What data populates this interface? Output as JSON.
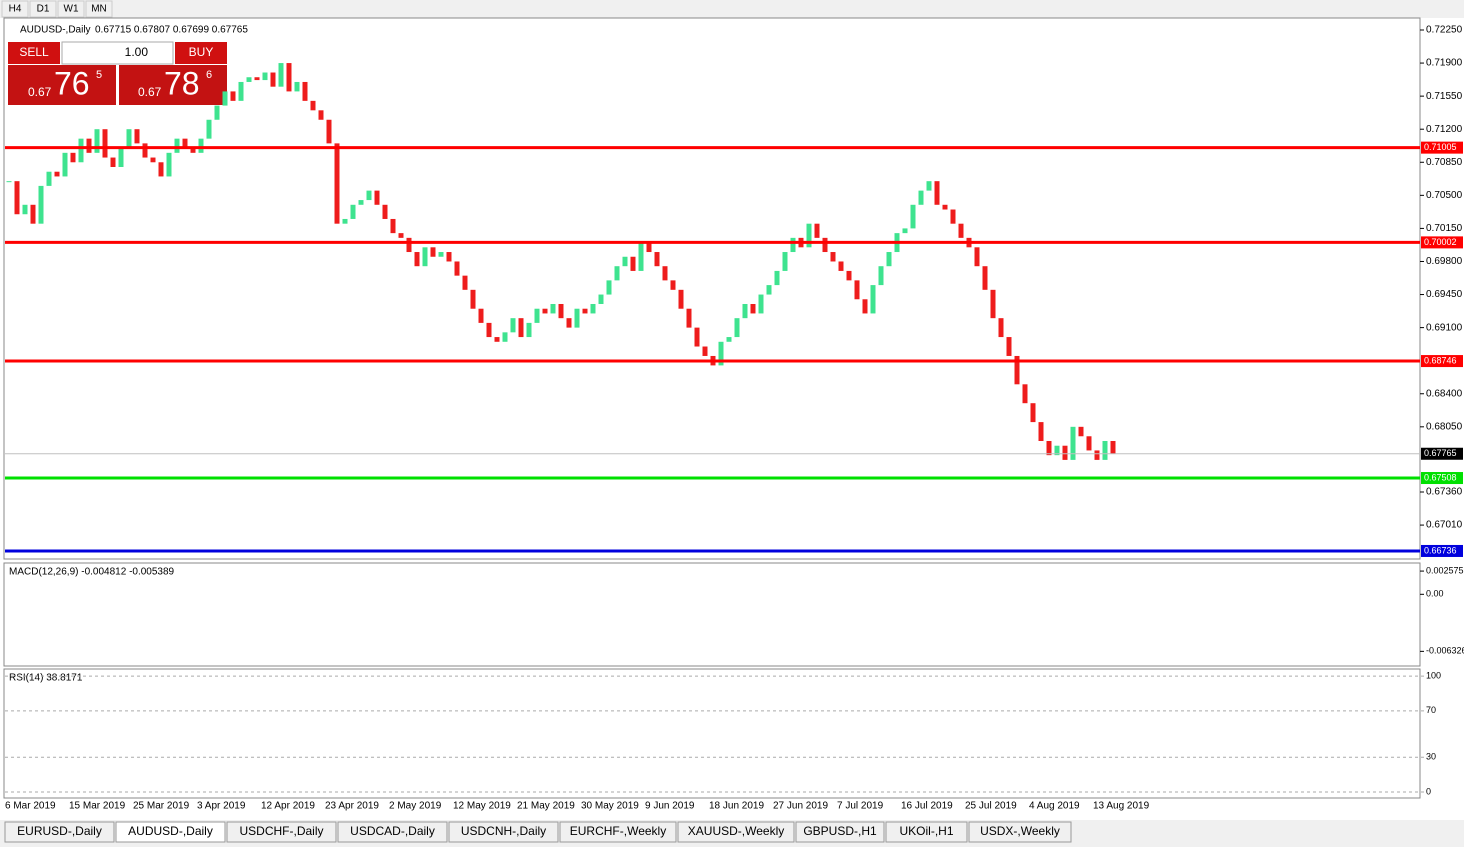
{
  "toolbar": {
    "timeframes": [
      "H4",
      "D1",
      "W1",
      "MN"
    ]
  },
  "trade_panel": {
    "sell": "SELL",
    "buy": "BUY",
    "lot": "1.00",
    "sell_price": [
      "0.67",
      "76",
      "5"
    ],
    "buy_price": [
      "0.67",
      "78",
      "6"
    ]
  },
  "chart_data": {
    "type": "candlestick",
    "title": "AUDUSD-,Daily",
    "ohlc_header": "0.67715 0.67807 0.67699 0.67765",
    "color_up": "#3ee38f",
    "color_down": "#ee1c1c",
    "categories": [
      "6 Mar 2019",
      null,
      null,
      null,
      null,
      null,
      null,
      null,
      "15 Mar 2019",
      null,
      null,
      null,
      null,
      null,
      null,
      null,
      "25 Mar 2019",
      null,
      null,
      null,
      null,
      null,
      null,
      null,
      "3 Apr 2019",
      null,
      null,
      null,
      null,
      null,
      null,
      null,
      "12 Apr 2019",
      null,
      null,
      null,
      null,
      null,
      null,
      null,
      "23 Apr 2019",
      null,
      null,
      null,
      null,
      null,
      null,
      null,
      "2 May 2019",
      null,
      null,
      null,
      null,
      null,
      null,
      null,
      "12 May 2019",
      null,
      null,
      null,
      null,
      null,
      null,
      null,
      "21 May 2019",
      null,
      null,
      null,
      null,
      null,
      null,
      null,
      "30 May 2019",
      null,
      null,
      null,
      null,
      null,
      null,
      null,
      "9 Jun 2019",
      null,
      null,
      null,
      null,
      null,
      null,
      null,
      "18 Jun 2019",
      null,
      null,
      null,
      null,
      null,
      null,
      null,
      "27 Jun 2019",
      null,
      null,
      null,
      null,
      null,
      null,
      null,
      "7 Jul 2019",
      null,
      null,
      null,
      null,
      null,
      null,
      null,
      "16 Jul 2019",
      null,
      null,
      null,
      null,
      null,
      null,
      null,
      "25 Jul 2019",
      null,
      null,
      null,
      null,
      null,
      null,
      null,
      "4 Aug 2019",
      null,
      null,
      null,
      null,
      null,
      null,
      null,
      "13 Aug 2019",
      null,
      null
    ],
    "close": [
      0.7065,
      0.703,
      0.704,
      0.702,
      0.706,
      0.7075,
      0.707,
      0.7095,
      0.7085,
      0.711,
      0.7095,
      0.712,
      0.709,
      0.708,
      0.71,
      0.712,
      0.7105,
      0.709,
      0.7085,
      0.707,
      0.7095,
      0.711,
      0.71,
      0.7095,
      0.711,
      0.713,
      0.7145,
      0.716,
      0.715,
      0.717,
      0.7175,
      0.7172,
      0.718,
      0.7165,
      0.719,
      0.716,
      0.717,
      0.715,
      0.714,
      0.713,
      0.7105,
      0.702,
      0.7025,
      0.704,
      0.7045,
      0.7055,
      0.704,
      0.7025,
      0.701,
      0.7005,
      0.699,
      0.6975,
      0.6995,
      0.6985,
      0.699,
      0.698,
      0.6965,
      0.695,
      0.693,
      0.6915,
      0.69,
      0.6895,
      0.6905,
      0.692,
      0.69,
      0.6915,
      0.693,
      0.6925,
      0.6935,
      0.692,
      0.691,
      0.693,
      0.6925,
      0.6935,
      0.6945,
      0.696,
      0.6975,
      0.6985,
      0.697,
      0.7,
      0.699,
      0.6975,
      0.696,
      0.695,
      0.693,
      0.691,
      0.689,
      0.688,
      0.687,
      0.6895,
      0.69,
      0.692,
      0.6935,
      0.6925,
      0.6945,
      0.6955,
      0.697,
      0.699,
      0.7005,
      0.6995,
      0.702,
      0.7005,
      0.699,
      0.698,
      0.697,
      0.696,
      0.694,
      0.6925,
      0.6955,
      0.6975,
      0.699,
      0.701,
      0.7015,
      0.704,
      0.7055,
      0.7065,
      0.704,
      0.7035,
      0.702,
      0.7005,
      0.6995,
      0.6975,
      0.695,
      0.692,
      0.69,
      0.688,
      0.685,
      0.683,
      0.681,
      0.679,
      0.6775,
      0.6785,
      0.677,
      0.6805,
      0.6795,
      0.678,
      0.677,
      0.679,
      0.67765
    ],
    "ylim": [
      0.66651,
      0.72377
    ],
    "yticks": [
      {
        "value": 0.7225,
        "label": "0.72250"
      },
      {
        "value": 0.719,
        "label": "0.71900"
      },
      {
        "value": 0.7155,
        "label": "0.71550"
      },
      {
        "value": 0.712,
        "label": "0.71200"
      },
      {
        "value": 0.7085,
        "label": "0.70850"
      },
      {
        "value": 0.705,
        "label": "0.70500"
      },
      {
        "value": 0.7015,
        "label": "0.70150"
      },
      {
        "value": 0.698,
        "label": "0.69800"
      },
      {
        "value": 0.6945,
        "label": "0.69450"
      },
      {
        "value": 0.691,
        "label": "0.69100"
      },
      {
        "value": 0.684,
        "label": "0.68400"
      },
      {
        "value": 0.6805,
        "label": "0.68050"
      },
      {
        "value": 0.6736,
        "label": "0.67360"
      },
      {
        "value": 0.6701,
        "label": "0.67010"
      }
    ],
    "levels": [
      {
        "value": 0.71005,
        "color": "#ff0000"
      },
      {
        "value": 0.70002,
        "color": "#ff0000"
      },
      {
        "value": 0.68746,
        "color": "#ff0000"
      },
      {
        "value": 0.67508,
        "color": "#00e000"
      },
      {
        "value": 0.66736,
        "color": "#0000dd"
      }
    ],
    "current": {
      "value": 0.67765,
      "color": "#c0c0c0"
    }
  },
  "macd": {
    "title": "MACD(12,26,9) -0.004812 -0.005389",
    "ylim": [
      -0.00795,
      0.003471
    ],
    "yticks": [
      {
        "value": 0.002575,
        "label": "0.002575"
      },
      {
        "value": 0,
        "label": "0.00"
      },
      {
        "value": -0.006326,
        "label": "-0.006326"
      }
    ]
  },
  "rsi": {
    "title": "RSI(14) 38.8171",
    "ylim": [
      -5.2,
      106.1
    ],
    "yticks": [
      100,
      70,
      30,
      0
    ]
  },
  "tabs": {
    "names": [
      "EURUSD-,Daily",
      "AUDUSD-,Daily",
      "USDCHF-,Daily",
      "USDCAD-,Daily",
      "USDCNH-,Daily",
      "EURCHF-,Weekly",
      "XAUUSD-,Weekly",
      "GBPUSD-,H1",
      "UKOil-,H1",
      "USDX-,Weekly"
    ],
    "active": 1
  }
}
